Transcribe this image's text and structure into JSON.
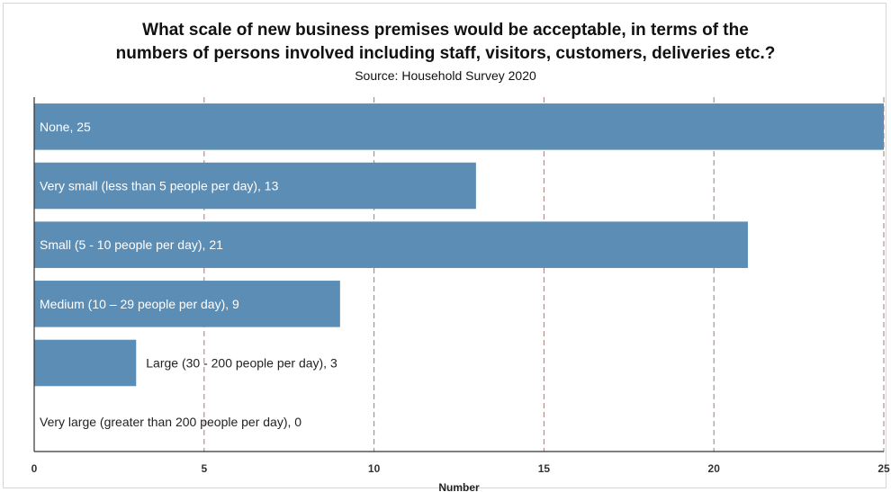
{
  "chart_data": {
    "type": "bar",
    "orientation": "horizontal",
    "title": "What scale of new business premises would be acceptable, in terms of the numbers of persons involved including staff, visitors, customers, deliveries etc.?",
    "title_lines": [
      "What scale of new business premises would be acceptable, in terms of the",
      "numbers of persons involved including staff, visitors, customers, deliveries etc.?"
    ],
    "subtitle": "Source: Household Survey 2020",
    "xlabel": "Number",
    "ylabel": "",
    "xlim": [
      0,
      25
    ],
    "xticks": [
      0,
      5,
      10,
      15,
      20,
      25
    ],
    "grid": "vertical dashed",
    "bar_color": "#5b8db5",
    "categories": [
      "None",
      "Very small (less than 5 people per day)",
      "Small (5 - 10 people per day)",
      "Medium (10 – 29 people per day)",
      "Large (30 - 200 people per day)",
      "Very large (greater than 200 people per day)"
    ],
    "values": [
      25,
      13,
      21,
      9,
      3,
      0
    ],
    "data_labels": [
      "None, 25",
      "Very small (less than 5 people per day), 13",
      "Small (5 - 10 people per day), 21",
      "Medium (10 – 29 people per day), 9",
      "Large (30 - 200 people per day), 3",
      "Very large (greater than 200 people per day), 0"
    ]
  }
}
